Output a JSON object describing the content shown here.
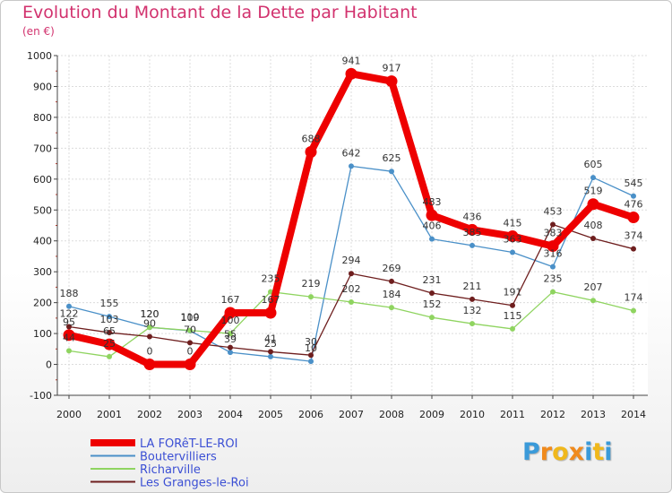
{
  "header": {
    "title": "Evolution du Montant de la Dette par Habitant",
    "subtitle": "(en €)"
  },
  "logo": {
    "letters": [
      "P",
      "r",
      "o",
      "x",
      "i",
      "t",
      "i"
    ],
    "colors": [
      "#3a9ad9",
      "#f08a1c",
      "#f0b81c",
      "#f08a1c",
      "#3a9ad9",
      "#f0b81c",
      "#3a9ad9"
    ]
  },
  "chart_data": {
    "type": "line",
    "title": "Evolution du Montant de la Dette par Habitant",
    "ylabel": "(en €)",
    "xlabel": "",
    "ylim": [
      -100,
      1000
    ],
    "yticks": [
      "-100",
      "0",
      "100",
      "200",
      "300",
      "400",
      "500",
      "600",
      "700",
      "800",
      "900",
      "1000"
    ],
    "categories": [
      "2000",
      "2001",
      "2002",
      "2003",
      "2004",
      "2005",
      "2006",
      "2007",
      "2008",
      "2009",
      "2010",
      "2011",
      "2012",
      "2013",
      "2014"
    ],
    "grid": true,
    "legend_position": "bottom-left",
    "series": [
      {
        "name": "Boutervilliers",
        "color": "#4a90c8",
        "values": [
          188,
          155,
          120,
          109,
          39,
          25,
          10,
          642,
          625,
          406,
          385,
          363,
          316,
          605,
          545
        ],
        "labels": [
          "188",
          "155",
          "120",
          "109",
          "39",
          "25",
          "10",
          "642",
          "625",
          "406",
          "385",
          "363",
          "316",
          "605",
          "545"
        ]
      },
      {
        "name": "Richarville",
        "color": "#8fd460",
        "values": [
          44,
          25,
          120,
          110,
          100,
          235,
          219,
          202,
          184,
          152,
          132,
          115,
          235,
          207,
          174
        ],
        "labels": [
          "44",
          "25",
          "120",
          "110",
          "100",
          "235",
          "219",
          "202",
          "184",
          "152",
          "132",
          "115",
          "235",
          "207",
          "174"
        ]
      },
      {
        "name": "Les Granges-le-Roi",
        "color": "#6e1e1e",
        "values": [
          122,
          103,
          90,
          70,
          55,
          41,
          30,
          294,
          269,
          231,
          211,
          191,
          453,
          408,
          374
        ],
        "labels": [
          "122",
          "103",
          "90",
          "70",
          "55",
          "41",
          "30",
          "294",
          "269",
          "231",
          "211",
          "191",
          "453",
          "408",
          "374"
        ]
      },
      {
        "name": "LA FORêT-LE-ROI",
        "color": "#ee0000",
        "values": [
          95,
          65,
          0,
          0,
          167,
          167,
          688,
          941,
          917,
          483,
          436,
          415,
          383,
          519,
          476
        ],
        "labels": [
          "95",
          "65",
          "0",
          "0",
          "167",
          "167",
          "688",
          "941",
          "917",
          "483",
          "436",
          "415",
          "383",
          "519",
          "476"
        ]
      }
    ],
    "legend": [
      "LA FORêT-LE-ROI",
      "Boutervilliers",
      "Richarville",
      "Les Granges-le-Roi"
    ]
  }
}
